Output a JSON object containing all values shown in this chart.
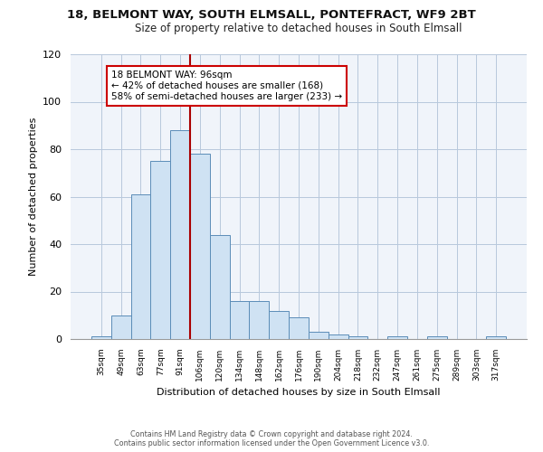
{
  "title1": "18, BELMONT WAY, SOUTH ELMSALL, PONTEFRACT, WF9 2BT",
  "title2": "Size of property relative to detached houses in South Elmsall",
  "xlabel": "Distribution of detached houses by size in South Elmsall",
  "ylabel": "Number of detached properties",
  "bar_labels": [
    "35sqm",
    "49sqm",
    "63sqm",
    "77sqm",
    "91sqm",
    "106sqm",
    "120sqm",
    "134sqm",
    "148sqm",
    "162sqm",
    "176sqm",
    "190sqm",
    "204sqm",
    "218sqm",
    "232sqm",
    "247sqm",
    "261sqm",
    "275sqm",
    "289sqm",
    "303sqm",
    "317sqm"
  ],
  "bar_heights": [
    1,
    10,
    61,
    75,
    88,
    78,
    44,
    16,
    16,
    12,
    9,
    3,
    2,
    1,
    0,
    1,
    0,
    1,
    0,
    0,
    1
  ],
  "bar_color": "#cfe2f3",
  "bar_edge_color": "#5b8db8",
  "vline_x": 4.5,
  "vline_color": "#aa0000",
  "ylim": [
    0,
    120
  ],
  "yticks": [
    0,
    20,
    40,
    60,
    80,
    100,
    120
  ],
  "annotation_title": "18 BELMONT WAY: 96sqm",
  "annotation_line1": "← 42% of detached houses are smaller (168)",
  "annotation_line2": "58% of semi-detached houses are larger (233) →",
  "annotation_box_color": "#ffffff",
  "annotation_box_edge": "#cc0000",
  "footer1": "Contains HM Land Registry data © Crown copyright and database right 2024.",
  "footer2": "Contains public sector information licensed under the Open Government Licence v3.0."
}
